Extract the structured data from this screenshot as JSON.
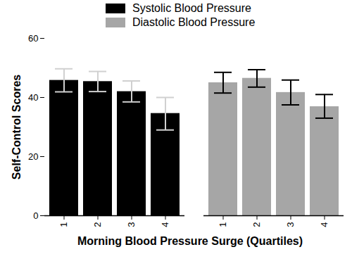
{
  "chart_data": {
    "type": "bar",
    "xlabel": "Morning Blood Pressure Surge (Quartiles)",
    "ylabel": "Self-Control Scores",
    "categories": [
      "1",
      "2",
      "3",
      "4"
    ],
    "series": [
      {
        "name": "Systolic Blood Pressure",
        "color": "#000000",
        "values": [
          45.8,
          45.4,
          42.0,
          34.6
        ],
        "error_lower": [
          41.9,
          42.0,
          38.5,
          29.0
        ],
        "error_upper": [
          49.7,
          48.8,
          45.6,
          40.0
        ]
      },
      {
        "name": "Diastolic Blood Pressure",
        "color": "#a6a6a6",
        "values": [
          45.0,
          46.5,
          41.7,
          36.9
        ],
        "error_lower": [
          41.5,
          43.5,
          37.5,
          33.0
        ],
        "error_upper": [
          48.5,
          49.4,
          45.9,
          41.0
        ]
      }
    ],
    "ylim": [
      0,
      60
    ],
    "yticks": [
      0,
      20,
      40,
      60
    ],
    "grid": false
  }
}
